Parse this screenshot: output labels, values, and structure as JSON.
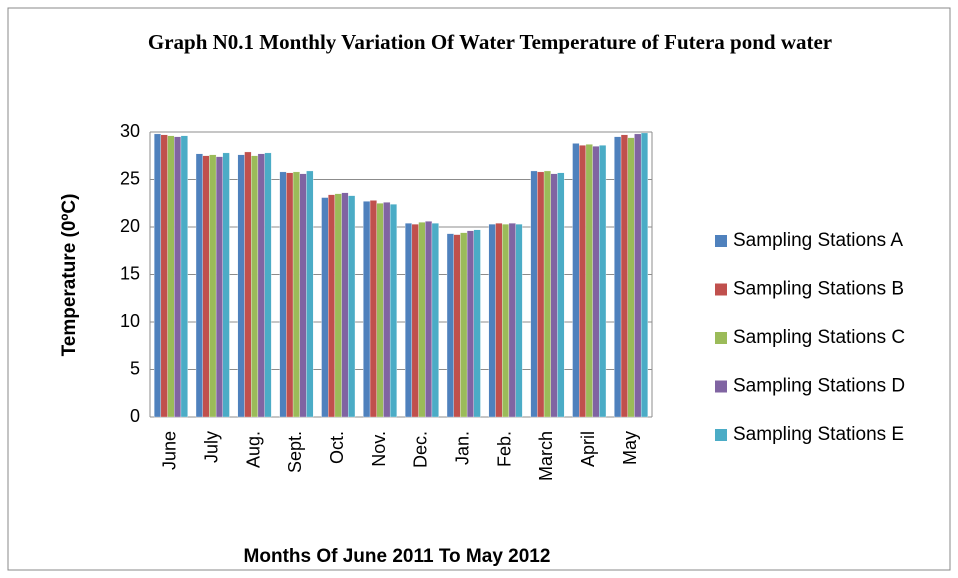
{
  "chart_data": {
    "type": "bar",
    "title": "Graph N0.1 Monthly Variation Of Water Temperature of Futera pond water",
    "x_label": "Months Of June 2011 To May 2012",
    "y_label": "Temperature (0ºC)",
    "categories": [
      "June",
      "July",
      "Aug.",
      "Sept.",
      "Oct.",
      "Nov.",
      "Dec.",
      "Jan.",
      "Feb.",
      "March",
      "April",
      "May"
    ],
    "series": [
      {
        "name": "Sampling Stations A",
        "color": "#4f81bd",
        "values": [
          29.8,
          27.7,
          27.6,
          25.8,
          23.1,
          22.7,
          20.4,
          19.3,
          20.3,
          25.9,
          28.8,
          29.5
        ]
      },
      {
        "name": "Sampling Stations B",
        "color": "#c0504d",
        "values": [
          29.7,
          27.5,
          27.9,
          25.7,
          23.4,
          22.8,
          20.3,
          19.2,
          20.4,
          25.8,
          28.6,
          29.7
        ]
      },
      {
        "name": "Sampling Stations C",
        "color": "#9bbb59",
        "values": [
          29.6,
          27.6,
          27.5,
          25.8,
          23.5,
          22.5,
          20.5,
          19.4,
          20.3,
          25.9,
          28.7,
          29.4
        ]
      },
      {
        "name": "Sampling Stations D",
        "color": "#8064a2",
        "values": [
          29.5,
          27.4,
          27.7,
          25.6,
          23.6,
          22.6,
          20.6,
          19.6,
          20.4,
          25.6,
          28.5,
          29.8
        ]
      },
      {
        "name": "Sampling Stations E",
        "color": "#4bacc6",
        "values": [
          29.6,
          27.8,
          27.8,
          25.9,
          23.3,
          22.4,
          20.4,
          19.7,
          20.3,
          25.7,
          28.6,
          29.9
        ]
      }
    ],
    "ylim": [
      0,
      30
    ],
    "yticks": [
      0,
      5,
      10,
      15,
      20,
      25,
      30
    ],
    "grid": true,
    "legend": "right"
  }
}
